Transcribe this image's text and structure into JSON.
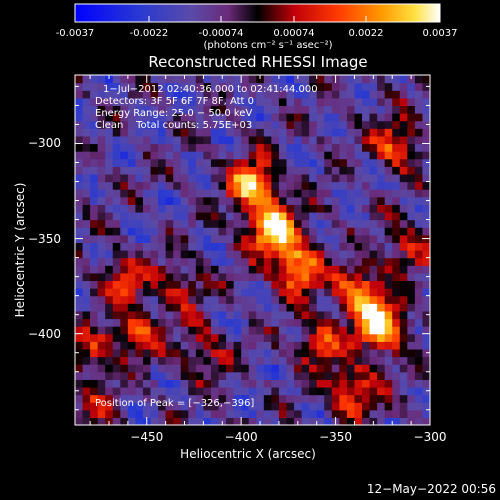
{
  "colorbar": {
    "tick_labels": [
      "-0.0037",
      "-0.0022",
      "-0.00074",
      "0.00074",
      "0.0022",
      "0.0037"
    ],
    "range": [
      -0.0037,
      0.0037
    ],
    "unit_label": "(photons cm⁻² s⁻¹ asec⁻²)"
  },
  "chart_data": {
    "type": "heatmap",
    "title": "Reconstructed RHESSI Image",
    "xlabel": "Heliocentric X (arcsec)",
    "ylabel": "Heliocentric Y (arcsec)",
    "xlim": [
      -488,
      -300
    ],
    "ylim": [
      -448,
      -264
    ],
    "x_ticks": [
      -450,
      -400,
      -350,
      -300
    ],
    "y_ticks": [
      -300,
      -350,
      -400
    ],
    "x_tick_labels": [
      "−450",
      "−400",
      "−350",
      "−300"
    ],
    "y_tick_labels": [
      "−300",
      "−350",
      "−400"
    ],
    "annotations": {
      "time": "1−Jul−2012 02:40:36.000 to 02:41:44.000",
      "detectors": "Detectors: 3F 5F 6F 7F 8F, Att 0",
      "energy": "Energy Range: 25.0 − 50.0 keV",
      "clean": "Clean    Total counts: 5.75E+03",
      "peak": "Position of Peak = [−326,−396]"
    },
    "peak": [
      -326,
      -396
    ],
    "sources": [
      {
        "x": -393,
        "y": -322,
        "strength": 0.95
      },
      {
        "x": -383,
        "y": -345,
        "strength": 1.0
      },
      {
        "x": -370,
        "y": -365,
        "strength": 0.85
      },
      {
        "x": -338,
        "y": -378,
        "strength": 0.8
      },
      {
        "x": -326,
        "y": -396,
        "strength": 1.0
      },
      {
        "x": -358,
        "y": -405,
        "strength": 0.55
      },
      {
        "x": -340,
        "y": -430,
        "strength": 0.65
      },
      {
        "x": -318,
        "y": -300,
        "strength": 0.6
      },
      {
        "x": -312,
        "y": -355,
        "strength": 0.45
      },
      {
        "x": -463,
        "y": -372,
        "strength": 0.5
      },
      {
        "x": -455,
        "y": -400,
        "strength": 0.55
      },
      {
        "x": -480,
        "y": -410,
        "strength": 0.45
      },
      {
        "x": -420,
        "y": -410,
        "strength": 0.4
      },
      {
        "x": -432,
        "y": -375,
        "strength": 0.4
      },
      {
        "x": -478,
        "y": -440,
        "strength": 0.3
      }
    ]
  },
  "footer": {
    "timestamp": "12−May−2022 00:56"
  }
}
